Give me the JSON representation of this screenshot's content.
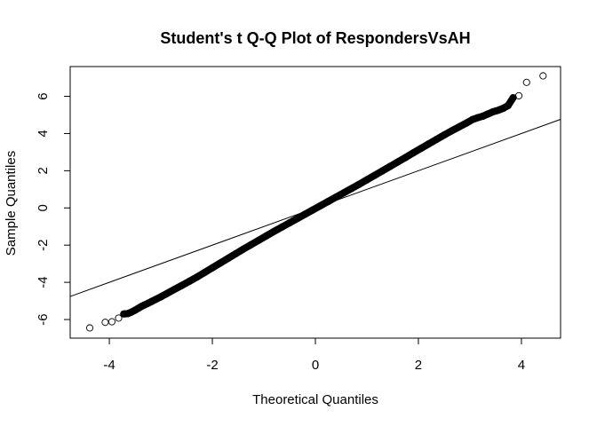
{
  "chart_data": {
    "type": "scatter",
    "title": "Student's t Q-Q Plot of RespondersVsAH",
    "xlabel": "Theoretical Quantiles",
    "ylabel": "Sample Quantiles",
    "xlim": [
      -4.76,
      4.76
    ],
    "ylim": [
      -7.0,
      7.6
    ],
    "x_ticks": [
      -4,
      -2,
      0,
      2,
      4
    ],
    "y_ticks": [
      -6,
      -4,
      -2,
      0,
      2,
      4,
      6
    ],
    "x_tick_labels": [
      "-4",
      "-2",
      "0",
      "2",
      "4"
    ],
    "y_tick_labels": [
      "-6",
      "-4",
      "-2",
      "0",
      "2",
      "4",
      "6"
    ],
    "grid": false,
    "reference_line": {
      "intercept": 0.0,
      "slope": 1.0
    },
    "points": [
      [
        -4.38,
        -6.45
      ],
      [
        -4.08,
        -6.15
      ],
      [
        -3.95,
        -6.12
      ],
      [
        -3.82,
        -5.92
      ],
      [
        -3.72,
        -5.7
      ],
      [
        -3.64,
        -5.68
      ],
      [
        -3.57,
        -5.6
      ],
      [
        -3.5,
        -5.5
      ],
      [
        -3.44,
        -5.4
      ],
      [
        -3.38,
        -5.3
      ],
      [
        -3.32,
        -5.22
      ],
      [
        -3.25,
        -5.13
      ],
      [
        -3.18,
        -5.03
      ],
      [
        -3.1,
        -4.92
      ],
      [
        -3.0,
        -4.78
      ],
      [
        -2.88,
        -4.6
      ],
      [
        -2.75,
        -4.4
      ],
      [
        -2.6,
        -4.18
      ],
      [
        -2.45,
        -3.95
      ],
      [
        -2.3,
        -3.72
      ],
      [
        -2.15,
        -3.47
      ],
      [
        -2.0,
        -3.22
      ],
      [
        -1.85,
        -2.97
      ],
      [
        -1.7,
        -2.72
      ],
      [
        -1.55,
        -2.47
      ],
      [
        -1.4,
        -2.22
      ],
      [
        -1.25,
        -1.98
      ],
      [
        -1.1,
        -1.74
      ],
      [
        -0.95,
        -1.5
      ],
      [
        -0.8,
        -1.26
      ],
      [
        -0.65,
        -1.03
      ],
      [
        -0.5,
        -0.8
      ],
      [
        -0.35,
        -0.57
      ],
      [
        -0.2,
        -0.34
      ],
      [
        -0.05,
        -0.11
      ],
      [
        0.1,
        0.12
      ],
      [
        0.25,
        0.35
      ],
      [
        0.4,
        0.58
      ],
      [
        0.55,
        0.81
      ],
      [
        0.7,
        1.04
      ],
      [
        0.85,
        1.27
      ],
      [
        1.0,
        1.51
      ],
      [
        1.15,
        1.75
      ],
      [
        1.3,
        1.99
      ],
      [
        1.45,
        2.23
      ],
      [
        1.6,
        2.47
      ],
      [
        1.75,
        2.71
      ],
      [
        1.9,
        2.96
      ],
      [
        2.05,
        3.2
      ],
      [
        2.2,
        3.44
      ],
      [
        2.35,
        3.68
      ],
      [
        2.5,
        3.92
      ],
      [
        2.65,
        4.15
      ],
      [
        2.8,
        4.37
      ],
      [
        2.93,
        4.56
      ],
      [
        3.05,
        4.75
      ],
      [
        3.15,
        4.85
      ],
      [
        3.25,
        4.93
      ],
      [
        3.35,
        5.05
      ],
      [
        3.45,
        5.17
      ],
      [
        3.55,
        5.25
      ],
      [
        3.65,
        5.36
      ],
      [
        3.74,
        5.5
      ],
      [
        3.84,
        5.93
      ],
      [
        3.95,
        6.03
      ],
      [
        4.1,
        6.75
      ],
      [
        4.42,
        7.1
      ]
    ]
  }
}
